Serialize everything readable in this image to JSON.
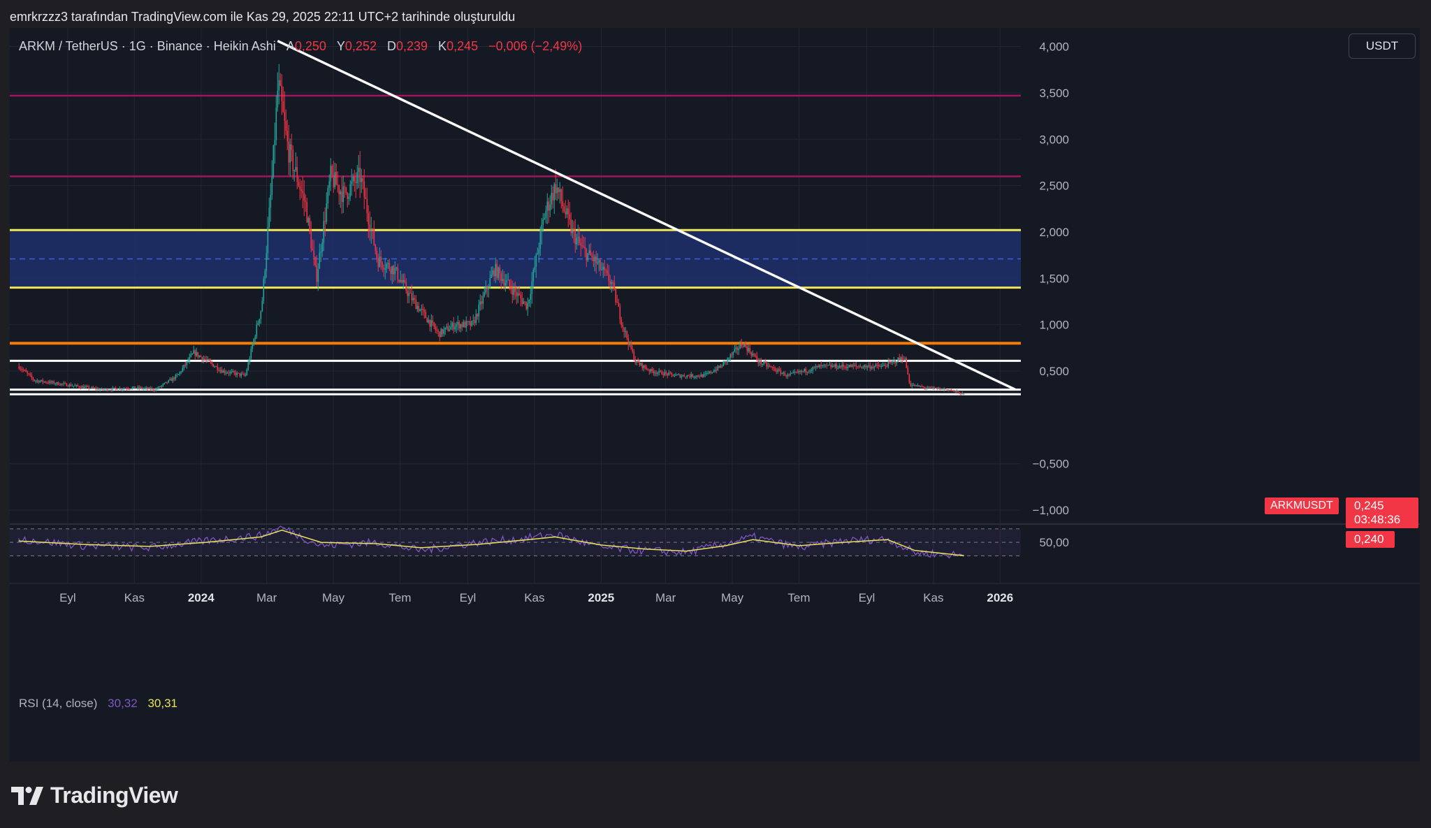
{
  "header": {
    "note": "emrkrzzz3 tarafından TradingView.com ile Kas 29, 2025 22:11 UTC+2 tarihinde oluşturuldu"
  },
  "legend": {
    "symbol": "ARKM / TetherUS · 1G · Binance · Heikin Ashi",
    "open_label": "A",
    "open_value": "0,250",
    "high_label": "Y",
    "high_value": "0,252",
    "low_label": "D",
    "low_value": "0,239",
    "close_label": "K",
    "close_value": "0,245",
    "change": "−0,006 (−2,49%)"
  },
  "unit_button": "USDT",
  "price_tags": {
    "symbol": "ARKMUSDT",
    "price": "0,245",
    "countdown": "03:48:36",
    "low": "0,240"
  },
  "rsi": {
    "name": "RSI (14, close)",
    "value": "30,32",
    "ma_value": "30,31",
    "axis_label": "50,00"
  },
  "branding": {
    "logo_text": "TradingView"
  },
  "colors": {
    "background": "#151924",
    "up": "#26a69a",
    "down": "#f23645",
    "yellow_line": "#f0e65a",
    "orange_line": "#f57c00",
    "magenta_line": "#a0155c",
    "zone_fill": "#1d2f6b",
    "trendline": "#ffffff",
    "rsi_line": "#7e57c2",
    "rsi_ma": "#e8e35a"
  },
  "chart_data": {
    "type": "line",
    "title": "ARKM / TetherUS · 1G · Binance · Heikin Ashi",
    "ylim": [
      -1.15,
      4.2
    ],
    "y_ticks": [
      "4,000",
      "3,500",
      "3,000",
      "2,500",
      "2,000",
      "1,500",
      "1,000",
      "0,500",
      "−0,500",
      "−1,000"
    ],
    "x_ticks": [
      "Eyl",
      "Kas",
      "2024",
      "Mar",
      "May",
      "Tem",
      "Eyl",
      "Kas",
      "2025",
      "Mar",
      "May",
      "Tem",
      "Eyl",
      "Kas",
      "2026"
    ],
    "x_tick_dates": [
      "2023-09-01",
      "2023-11-01",
      "2024-01-01",
      "2024-03-01",
      "2024-05-01",
      "2024-07-01",
      "2024-09-01",
      "2024-11-01",
      "2025-01-01",
      "2025-03-01",
      "2025-05-01",
      "2025-07-01",
      "2025-09-01",
      "2025-11-01",
      "2026-01-01"
    ],
    "x_range": [
      "2023-07-10",
      "2026-01-20"
    ],
    "series": [
      {
        "name": "ARKMUSDT",
        "x": [
          "2023-07-18",
          "2023-08-01",
          "2023-09-01",
          "2023-10-01",
          "2023-11-01",
          "2023-11-20",
          "2023-12-10",
          "2023-12-25",
          "2024-01-20",
          "2024-02-10",
          "2024-02-25",
          "2024-03-05",
          "2024-03-11",
          "2024-03-20",
          "2024-04-05",
          "2024-04-15",
          "2024-04-28",
          "2024-05-10",
          "2024-05-25",
          "2024-06-10",
          "2024-06-25",
          "2024-07-10",
          "2024-08-05",
          "2024-08-20",
          "2024-09-05",
          "2024-09-25",
          "2024-10-10",
          "2024-10-25",
          "2024-11-10",
          "2024-11-20",
          "2024-12-05",
          "2024-12-15",
          "2024-12-25",
          "2025-01-10",
          "2025-01-20",
          "2025-02-01",
          "2025-02-15",
          "2025-03-10",
          "2025-04-05",
          "2025-04-20",
          "2025-05-10",
          "2025-05-25",
          "2025-06-20",
          "2025-07-20",
          "2025-08-20",
          "2025-09-15",
          "2025-10-05",
          "2025-10-10",
          "2025-10-25",
          "2025-11-15",
          "2025-11-29"
        ],
        "values": [
          0.55,
          0.4,
          0.35,
          0.3,
          0.32,
          0.3,
          0.45,
          0.7,
          0.5,
          0.45,
          1.2,
          2.5,
          3.6,
          2.9,
          2.3,
          1.5,
          2.6,
          2.4,
          2.6,
          1.7,
          1.6,
          1.3,
          0.9,
          1.0,
          1.0,
          1.6,
          1.4,
          1.2,
          2.2,
          2.5,
          2.0,
          1.8,
          1.7,
          1.45,
          1.0,
          0.6,
          0.5,
          0.45,
          0.45,
          0.55,
          0.8,
          0.6,
          0.45,
          0.55,
          0.55,
          0.55,
          0.65,
          0.35,
          0.32,
          0.3,
          0.245
        ]
      }
    ],
    "horizontal_levels": [
      {
        "value": 3.47,
        "color": "magenta"
      },
      {
        "value": 2.6,
        "color": "magenta"
      },
      {
        "value": 2.02,
        "color": "yellow"
      },
      {
        "value": 1.71,
        "color": "blue",
        "style": "dashed"
      },
      {
        "value": 1.4,
        "color": "yellow"
      },
      {
        "value": 0.8,
        "color": "orange"
      },
      {
        "value": 0.61,
        "color": "white"
      },
      {
        "value": 0.3,
        "color": "white"
      },
      {
        "value": 0.25,
        "color": "white"
      }
    ],
    "zone": {
      "from": 1.4,
      "to": 2.02
    },
    "trendline": {
      "from": [
        "2024-03-11",
        4.06
      ],
      "to": [
        "2026-01-15",
        0.3
      ]
    },
    "rsi_ylim": [
      15,
      75
    ],
    "rsi_levels": [
      70,
      50,
      30
    ],
    "rsi_series": {
      "x": [
        "2023-07-18",
        "2023-09-15",
        "2023-11-15",
        "2024-01-05",
        "2024-02-25",
        "2024-03-15",
        "2024-04-20",
        "2024-06-10",
        "2024-07-20",
        "2024-09-10",
        "2024-10-20",
        "2024-11-20",
        "2025-01-01",
        "2025-02-10",
        "2025-03-20",
        "2025-04-25",
        "2025-05-20",
        "2025-07-01",
        "2025-08-10",
        "2025-09-20",
        "2025-10-15",
        "2025-11-29"
      ],
      "values": [
        55,
        45,
        42,
        52,
        60,
        72,
        45,
        50,
        38,
        50,
        55,
        62,
        42,
        38,
        35,
        48,
        58,
        42,
        52,
        55,
        35,
        30.32
      ]
    },
    "rsi_ma": {
      "x": [
        "2023-07-18",
        "2023-09-15",
        "2023-11-15",
        "2024-01-05",
        "2024-02-25",
        "2024-03-15",
        "2024-04-20",
        "2024-06-10",
        "2024-07-20",
        "2024-09-10",
        "2024-10-20",
        "2024-11-20",
        "2025-01-01",
        "2025-02-10",
        "2025-03-20",
        "2025-04-25",
        "2025-05-20",
        "2025-07-01",
        "2025-08-10",
        "2025-09-20",
        "2025-10-15",
        "2025-11-29"
      ],
      "values": [
        52,
        47,
        44,
        50,
        58,
        68,
        50,
        48,
        42,
        47,
        53,
        58,
        46,
        40,
        37,
        45,
        54,
        45,
        50,
        54,
        38,
        30.31
      ]
    },
    "grid": true,
    "legend": "top-left"
  }
}
